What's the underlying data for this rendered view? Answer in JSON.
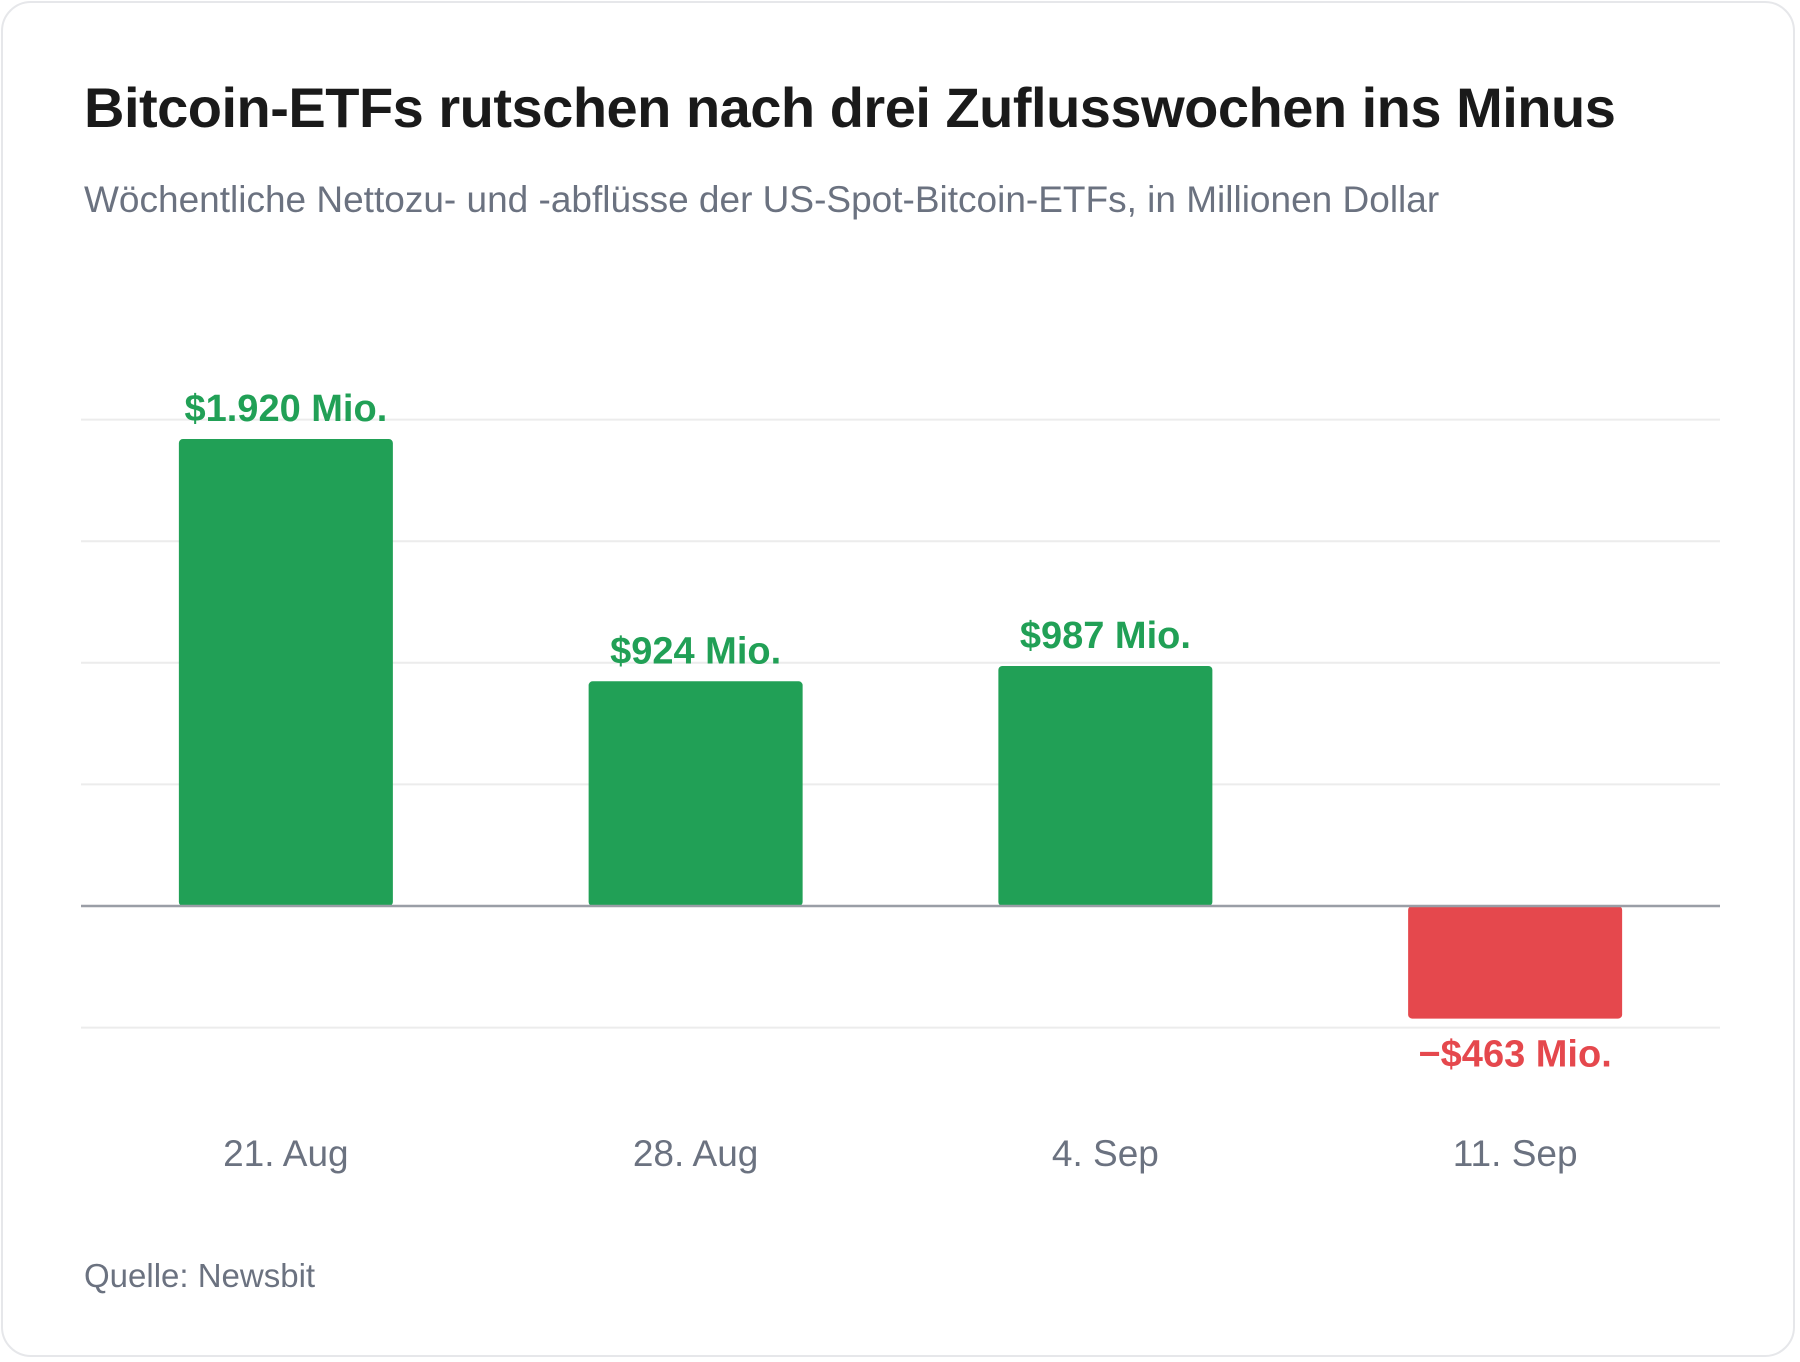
{
  "title": "Bitcoin-ETFs rutschen nach drei Zuflusswochen ins Minus",
  "subtitle": "Wöchentliche Nettozu- und -abflüsse der US-Spot-Bitcoin-ETFs, in Millionen Dollar",
  "source": "Quelle: Newsbit",
  "colors": {
    "positive": "#21a056",
    "negative": "#e5484d",
    "gridline": "#ececec",
    "baseline": "#9a9ea6",
    "category_text": "#6b7280"
  },
  "chart_data": {
    "type": "bar",
    "categories": [
      "21. Aug",
      "28. Aug",
      "4. Sep",
      "11. Sep"
    ],
    "values": [
      1920,
      924,
      987,
      -463
    ],
    "data_labels": [
      "$1.920 Mio.",
      "$924 Mio.",
      "$987 Mio.",
      "−$463 Mio."
    ],
    "ylim": [
      -500,
      2000
    ],
    "gridlines": [
      -500,
      500,
      1000,
      1500,
      2000
    ],
    "grid": true,
    "y_axis_labels_shown": false
  }
}
